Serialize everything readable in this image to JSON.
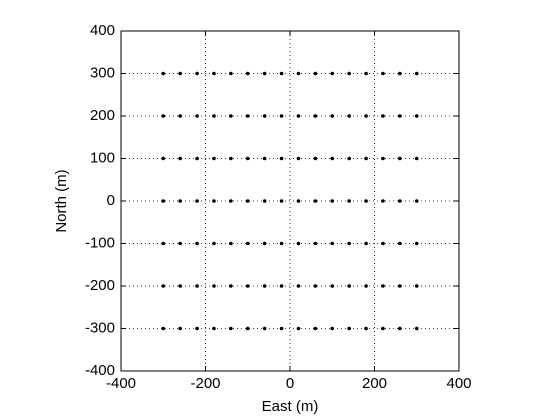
{
  "chart_data": {
    "type": "scatter",
    "xlabel": "East (m)",
    "ylabel": "North (m)",
    "color": "#000000",
    "xlim": [
      -400,
      400
    ],
    "xticks": [
      -400,
      -200,
      0,
      200,
      400
    ],
    "ylim": [
      -400,
      400
    ],
    "yticks": [
      -400,
      -300,
      -200,
      -100,
      0,
      100,
      200,
      300,
      400
    ],
    "grid": true,
    "x": [
      -300,
      -260,
      -220,
      -180,
      -140,
      -100,
      -60,
      -20,
      20,
      60,
      100,
      140,
      180,
      220,
      260,
      300,
      -300,
      -260,
      -220,
      -180,
      -140,
      -100,
      -60,
      -20,
      20,
      60,
      100,
      140,
      180,
      220,
      260,
      300,
      -300,
      -260,
      -220,
      -180,
      -140,
      -100,
      -60,
      -20,
      20,
      60,
      100,
      140,
      180,
      220,
      260,
      300,
      -300,
      -260,
      -220,
      -180,
      -140,
      -100,
      -60,
      -20,
      20,
      60,
      100,
      140,
      180,
      220,
      260,
      300,
      -300,
      -260,
      -220,
      -180,
      -140,
      -100,
      -60,
      -20,
      20,
      60,
      100,
      140,
      180,
      220,
      260,
      300,
      -300,
      -260,
      -220,
      -180,
      -140,
      -100,
      -60,
      -20,
      20,
      60,
      100,
      140,
      180,
      220,
      260,
      300,
      -300,
      -260,
      -220,
      -180,
      -140,
      -100,
      -60,
      -20,
      20,
      60,
      100,
      140,
      180,
      220,
      260,
      300
    ],
    "y": [
      300,
      300,
      300,
      300,
      300,
      300,
      300,
      300,
      300,
      300,
      300,
      300,
      300,
      300,
      300,
      300,
      200,
      200,
      200,
      200,
      200,
      200,
      200,
      200,
      200,
      200,
      200,
      200,
      200,
      200,
      200,
      200,
      100,
      100,
      100,
      100,
      100,
      100,
      100,
      100,
      100,
      100,
      100,
      100,
      100,
      100,
      100,
      100,
      0,
      0,
      0,
      0,
      0,
      0,
      0,
      0,
      0,
      0,
      0,
      0,
      0,
      0,
      0,
      0,
      -100,
      -100,
      -100,
      -100,
      -100,
      -100,
      -100,
      -100,
      -100,
      -100,
      -100,
      -100,
      -100,
      -100,
      -100,
      -100,
      -200,
      -200,
      -200,
      -200,
      -200,
      -200,
      -200,
      -200,
      -200,
      -200,
      -200,
      -200,
      -200,
      -200,
      -200,
      -200,
      -300,
      -300,
      -300,
      -300,
      -300,
      -300,
      -300,
      -300,
      -300,
      -300,
      -300,
      -300,
      -300,
      -300,
      -300,
      -300
    ]
  }
}
